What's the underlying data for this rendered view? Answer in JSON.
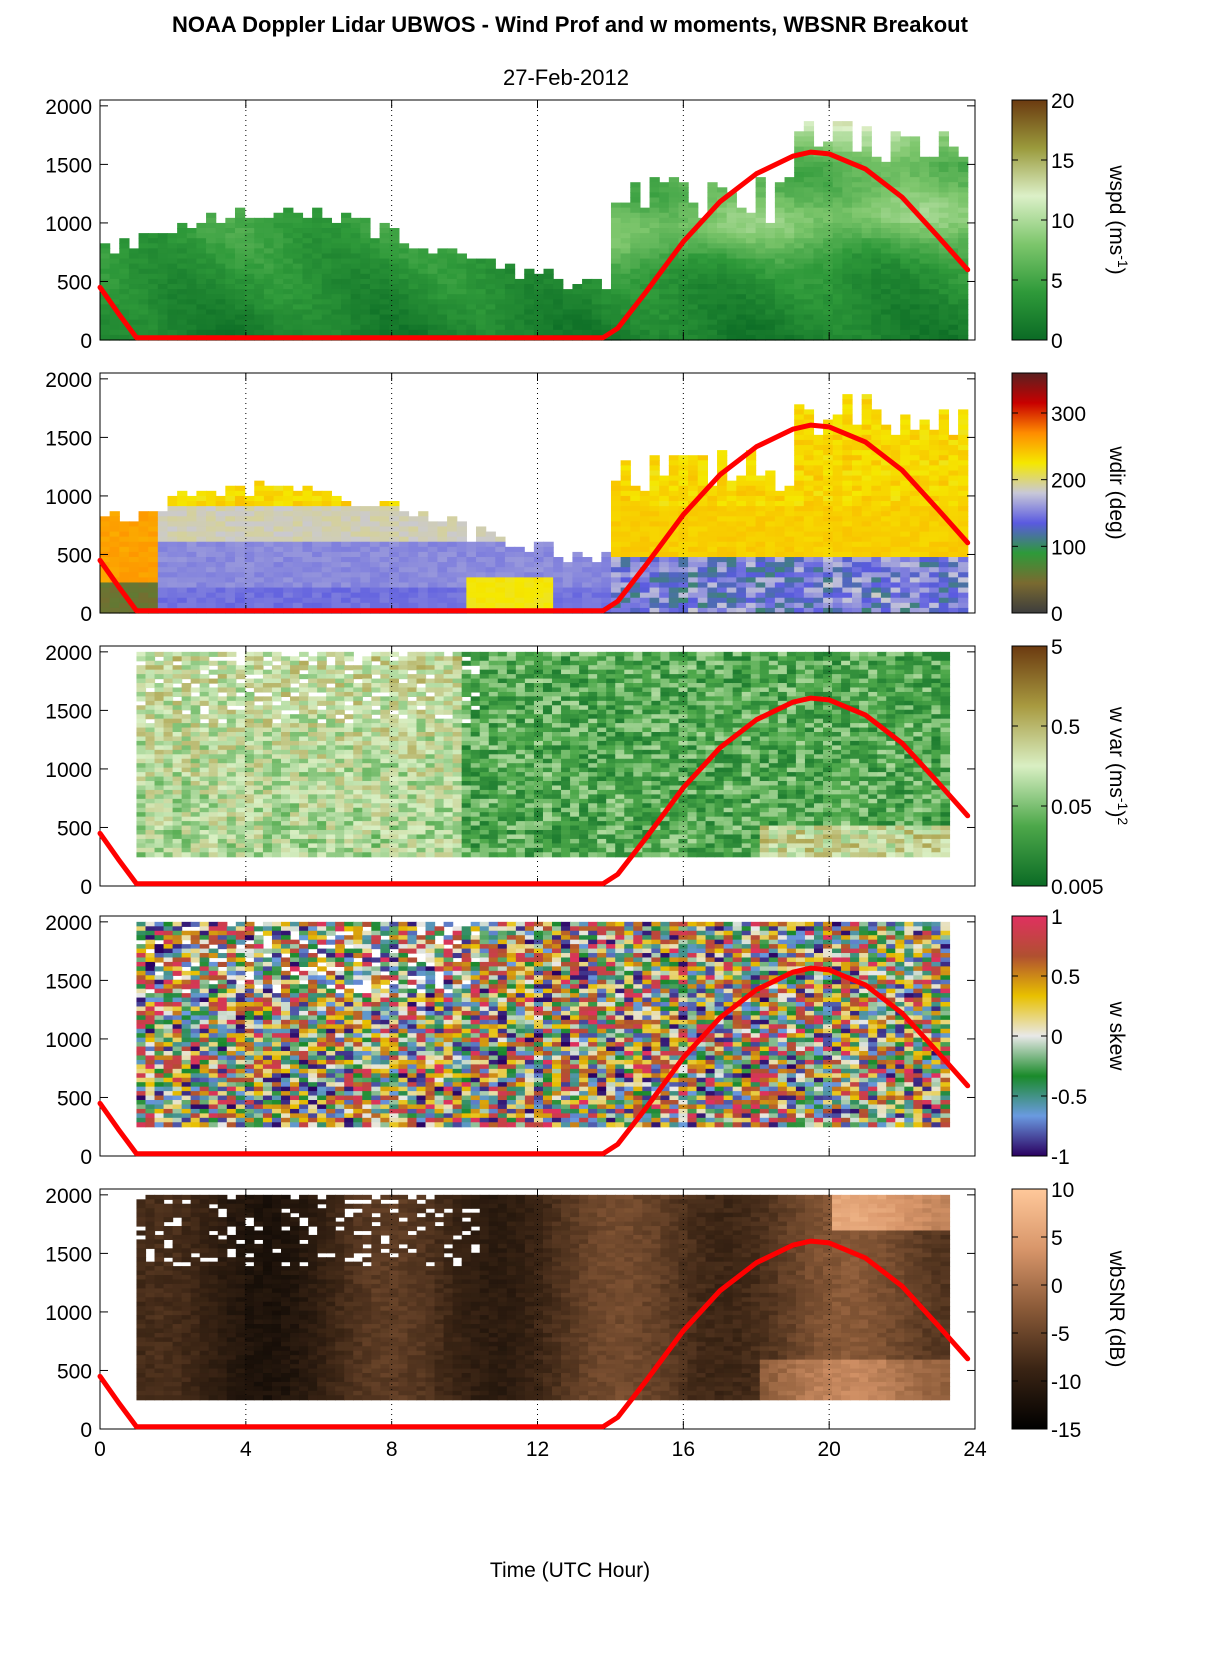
{
  "title": "NOAA Doppler Lidar UBWOS - Wind Prof and w moments, WBSNR Breakout",
  "subtitle": "27-Feb-2012",
  "chart_data": [
    {
      "type": "heatmap",
      "label": "wspd (ms-1)",
      "label_main": "wspd (ms",
      "label_sup": "-1",
      "label_end": ")",
      "colorbar_ticks": [
        "0",
        "5",
        "10",
        "15",
        "20"
      ],
      "clim": [
        0,
        20
      ],
      "colors": [
        "#0b6b25",
        "#2f9a3a",
        "#7dc66c",
        "#dcf0c8",
        "#9a9a3c",
        "#6b3a10"
      ],
      "data_start_hour": 0,
      "data_end_hour": 23.8,
      "data_bottom_m": 0
    },
    {
      "type": "heatmap",
      "label": "wdir (deg)",
      "colorbar_ticks": [
        "0",
        "100",
        "200",
        "300"
      ],
      "clim": [
        0,
        360
      ],
      "colors": [
        "#3d3d3d",
        "#7a6a30",
        "#2e9a3a",
        "#5a5ae0",
        "#c8c8d8",
        "#f5e800",
        "#ff8c00",
        "#c80000",
        "#5a2020"
      ],
      "data_start_hour": 0,
      "data_end_hour": 23.8,
      "data_bottom_m": 0
    },
    {
      "type": "heatmap",
      "label": "w var (ms-1)2",
      "label_main": "w var (ms",
      "label_sup": "-1",
      "label_end": ")",
      "label_sup2": "2",
      "colorbar_ticks": [
        "0.005",
        "0.05",
        "0.5",
        "5"
      ],
      "clim": [
        0.005,
        5
      ],
      "scale": "log",
      "colors": [
        "#0b6b25",
        "#4da84a",
        "#d9efc3",
        "#a89a40",
        "#6b3a10"
      ],
      "data_start_hour": 1,
      "data_end_hour": 23.3,
      "data_bottom_m": 250
    },
    {
      "type": "heatmap",
      "label": "w skew",
      "colorbar_ticks": [
        "-1",
        "-0.5",
        "0",
        "0.5",
        "1"
      ],
      "clim": [
        -1,
        1
      ],
      "colors": [
        "#2a0060",
        "#6a9ae0",
        "#1a8a2a",
        "#e8e8e8",
        "#e8c000",
        "#b05030",
        "#e03060"
      ],
      "data_start_hour": 1,
      "data_end_hour": 23.3,
      "data_bottom_m": 250
    },
    {
      "type": "heatmap",
      "label": "wbSNR (dB)",
      "colorbar_ticks": [
        "-15",
        "-10",
        "-5",
        "0",
        "5",
        "10"
      ],
      "clim": [
        -15,
        10
      ],
      "colors": [
        "#000000",
        "#3a2414",
        "#8a5a38",
        "#d8966a",
        "#ffc89a"
      ],
      "data_start_hour": 1,
      "data_end_hour": 23.3,
      "data_bottom_m": 250
    }
  ],
  "axes": {
    "xlabel": "Time (UTC Hour)",
    "xlim": [
      0,
      24
    ],
    "ylim": [
      0,
      2050
    ],
    "xticks": [
      "0",
      "4",
      "8",
      "12",
      "16",
      "20",
      "24"
    ],
    "yticks": [
      "0",
      "500",
      "1000",
      "1500",
      "2000"
    ],
    "grid": "vertical dotted at 4, 8, 12, 16, 20"
  },
  "overlay_line": {
    "color": "#ff0000",
    "x": [
      0,
      0.5,
      1.0,
      2,
      4,
      6,
      8,
      10,
      12,
      13.8,
      14.2,
      15,
      16,
      17,
      18,
      19,
      19.5,
      20,
      21,
      22,
      23,
      23.8
    ],
    "y": [
      450,
      230,
      20,
      20,
      20,
      20,
      20,
      20,
      20,
      20,
      100,
      420,
      840,
      1180,
      1420,
      1570,
      1605,
      1590,
      1460,
      1220,
      880,
      600
    ]
  }
}
